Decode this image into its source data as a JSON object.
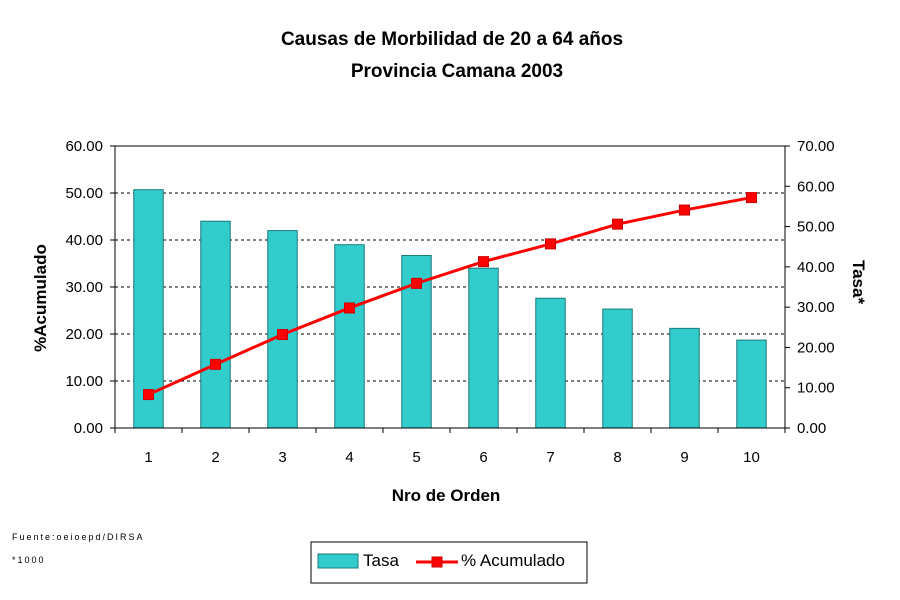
{
  "chart_data": {
    "type": "bar",
    "title": "Causas de Morbilidad de 20 a 64 años",
    "subtitle": "Provincia Camana 2003",
    "xlabel": "Nro de Orden",
    "ylabel_left": "%Acumulado",
    "ylabel_right": "Tasa*",
    "categories": [
      "1",
      "2",
      "3",
      "4",
      "5",
      "6",
      "7",
      "8",
      "9",
      "10"
    ],
    "ylim_left": [
      0,
      60
    ],
    "ylim_right": [
      0,
      70
    ],
    "yticks_left": [
      "0.00",
      "10.00",
      "20.00",
      "30.00",
      "40.00",
      "50.00",
      "60.00"
    ],
    "yticks_right": [
      "0.00",
      "10.00",
      "20.00",
      "30.00",
      "40.00",
      "50.00",
      "60.00",
      "70.00"
    ],
    "grid": true,
    "legend_position": "bottom-center",
    "series": [
      {
        "name": "Tasa",
        "kind": "bar",
        "axis": "left",
        "color": "#33cccc",
        "values": [
          50.7,
          44.0,
          42.0,
          39.0,
          36.7,
          34.0,
          27.6,
          25.3,
          21.2,
          18.7
        ]
      },
      {
        "name": "% Acumulado",
        "kind": "line",
        "axis": "right",
        "color": "#ff0000",
        "values": [
          8.3,
          15.8,
          23.2,
          29.8,
          35.9,
          41.3,
          45.7,
          50.6,
          54.1,
          57.2
        ]
      }
    ]
  },
  "notes": {
    "source": "Fuente:oeioepd/DIRSA",
    "footnote": "*1000"
  }
}
